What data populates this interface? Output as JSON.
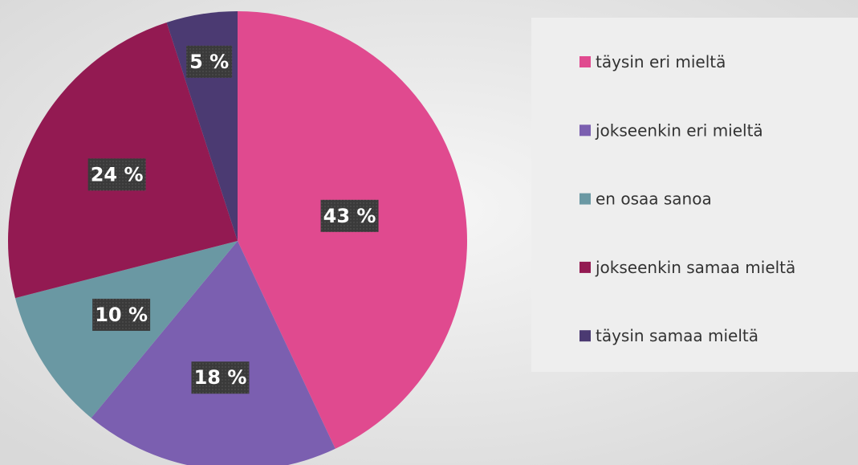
{
  "chart_data": {
    "type": "pie",
    "categories": [
      "täysin eri mieltä",
      "jokseenkin eri mieltä",
      "en osaa sanoa",
      "jokseenkin samaa mieltä",
      "täysin samaa mieltä"
    ],
    "values": [
      43,
      18,
      10,
      24,
      5
    ],
    "value_labels": [
      "43 %",
      "18 %",
      "10 %",
      "24 %",
      "5 %"
    ],
    "colors": [
      "#e04a8f",
      "#7b5fb0",
      "#6a98a3",
      "#931a52",
      "#4b3a72"
    ],
    "legend": "right"
  }
}
